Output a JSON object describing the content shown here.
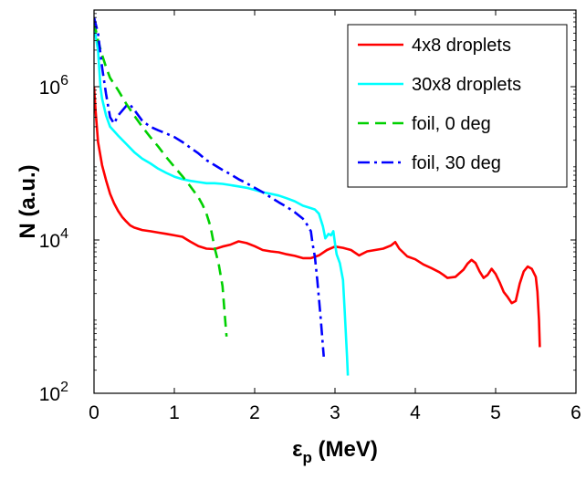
{
  "chart_data": {
    "type": "line",
    "title": "",
    "xlabel": {
      "main": "ε",
      "sub": "p",
      "rest": " (MeV)"
    },
    "ylabel": "N (a.u.)",
    "xlim": [
      0,
      6
    ],
    "ylim": [
      100,
      10000000
    ],
    "yscale": "log",
    "grid": false,
    "legend_position": "top-right",
    "x_ticks": [
      {
        "value": 0,
        "label": "0"
      },
      {
        "value": 1,
        "label": "1"
      },
      {
        "value": 2,
        "label": "2"
      },
      {
        "value": 3,
        "label": "3"
      },
      {
        "value": 4,
        "label": "4"
      },
      {
        "value": 5,
        "label": "5"
      },
      {
        "value": 6,
        "label": "6"
      }
    ],
    "y_ticks": [
      {
        "value": 100,
        "base": "10",
        "exp": "2"
      },
      {
        "value": 10000,
        "base": "10",
        "exp": "4"
      },
      {
        "value": 1000000,
        "base": "10",
        "exp": "6"
      }
    ],
    "series": [
      {
        "name": "4x8 droplets",
        "color": "#ff0000",
        "dash": "solid",
        "points": [
          [
            0.0,
            1000000
          ],
          [
            0.02,
            470000
          ],
          [
            0.05,
            190000
          ],
          [
            0.1,
            95000
          ],
          [
            0.15,
            60000
          ],
          [
            0.2,
            40000
          ],
          [
            0.25,
            30000
          ],
          [
            0.3,
            24000
          ],
          [
            0.35,
            20000
          ],
          [
            0.4,
            17500
          ],
          [
            0.45,
            15500
          ],
          [
            0.5,
            14500
          ],
          [
            0.6,
            13500
          ],
          [
            0.7,
            13000
          ],
          [
            0.8,
            12500
          ],
          [
            0.9,
            12000
          ],
          [
            1.0,
            11500
          ],
          [
            1.1,
            11000
          ],
          [
            1.2,
            9500
          ],
          [
            1.3,
            8300
          ],
          [
            1.4,
            7700
          ],
          [
            1.5,
            7600
          ],
          [
            1.6,
            8200
          ],
          [
            1.7,
            8700
          ],
          [
            1.8,
            9600
          ],
          [
            1.9,
            9100
          ],
          [
            2.0,
            8300
          ],
          [
            2.1,
            7400
          ],
          [
            2.2,
            7100
          ],
          [
            2.3,
            6900
          ],
          [
            2.4,
            6500
          ],
          [
            2.5,
            6200
          ],
          [
            2.6,
            5800
          ],
          [
            2.7,
            5800
          ],
          [
            2.8,
            6300
          ],
          [
            2.9,
            7400
          ],
          [
            3.0,
            8200
          ],
          [
            3.1,
            7900
          ],
          [
            3.2,
            7400
          ],
          [
            3.3,
            6300
          ],
          [
            3.4,
            7100
          ],
          [
            3.5,
            7400
          ],
          [
            3.6,
            7700
          ],
          [
            3.7,
            8500
          ],
          [
            3.75,
            9400
          ],
          [
            3.8,
            7700
          ],
          [
            3.9,
            6100
          ],
          [
            4.0,
            5600
          ],
          [
            4.1,
            4800
          ],
          [
            4.2,
            4300
          ],
          [
            4.3,
            3800
          ],
          [
            4.35,
            3500
          ],
          [
            4.4,
            3200
          ],
          [
            4.5,
            3300
          ],
          [
            4.6,
            4100
          ],
          [
            4.65,
            4900
          ],
          [
            4.7,
            5500
          ],
          [
            4.75,
            5000
          ],
          [
            4.8,
            3900
          ],
          [
            4.85,
            3200
          ],
          [
            4.9,
            3500
          ],
          [
            4.95,
            4200
          ],
          [
            5.0,
            3600
          ],
          [
            5.05,
            2800
          ],
          [
            5.1,
            2100
          ],
          [
            5.15,
            1800
          ],
          [
            5.2,
            1500
          ],
          [
            5.25,
            1600
          ],
          [
            5.3,
            2700
          ],
          [
            5.35,
            3900
          ],
          [
            5.4,
            4500
          ],
          [
            5.45,
            4200
          ],
          [
            5.5,
            3300
          ],
          [
            5.52,
            2100
          ],
          [
            5.54,
            900
          ],
          [
            5.55,
            400
          ]
        ]
      },
      {
        "name": "30x8 droplets",
        "color": "#00ffff",
        "dash": "solid",
        "points": [
          [
            0.0,
            6000000
          ],
          [
            0.05,
            3000000
          ],
          [
            0.08,
            1000000
          ],
          [
            0.1,
            700000
          ],
          [
            0.15,
            420000
          ],
          [
            0.2,
            300000
          ],
          [
            0.3,
            230000
          ],
          [
            0.4,
            180000
          ],
          [
            0.5,
            140000
          ],
          [
            0.6,
            115000
          ],
          [
            0.7,
            100000
          ],
          [
            0.8,
            85000
          ],
          [
            0.9,
            75000
          ],
          [
            1.0,
            67000
          ],
          [
            1.1,
            62000
          ],
          [
            1.2,
            59000
          ],
          [
            1.3,
            57000
          ],
          [
            1.4,
            55000
          ],
          [
            1.5,
            55000
          ],
          [
            1.6,
            54000
          ],
          [
            1.7,
            52000
          ],
          [
            1.8,
            50000
          ],
          [
            1.9,
            48000
          ],
          [
            2.0,
            45000
          ],
          [
            2.1,
            42000
          ],
          [
            2.2,
            40000
          ],
          [
            2.3,
            38000
          ],
          [
            2.4,
            35000
          ],
          [
            2.5,
            32000
          ],
          [
            2.6,
            28000
          ],
          [
            2.7,
            26000
          ],
          [
            2.75,
            25000
          ],
          [
            2.8,
            22000
          ],
          [
            2.85,
            15000
          ],
          [
            2.88,
            10500
          ],
          [
            2.92,
            12000
          ],
          [
            2.95,
            11500
          ],
          [
            2.98,
            13000
          ],
          [
            3.0,
            9000
          ],
          [
            3.02,
            6500
          ],
          [
            3.06,
            5000
          ],
          [
            3.1,
            3000
          ],
          [
            3.12,
            1200
          ],
          [
            3.15,
            300
          ],
          [
            3.16,
            170
          ]
        ]
      },
      {
        "name": "foil, 0 deg",
        "color": "#00d000",
        "dash": "dashed",
        "points": [
          [
            0.0,
            7000000
          ],
          [
            0.05,
            4000000
          ],
          [
            0.1,
            2600000
          ],
          [
            0.15,
            1800000
          ],
          [
            0.2,
            1300000
          ],
          [
            0.3,
            900000
          ],
          [
            0.4,
            600000
          ],
          [
            0.5,
            420000
          ],
          [
            0.6,
            300000
          ],
          [
            0.7,
            220000
          ],
          [
            0.8,
            165000
          ],
          [
            0.9,
            120000
          ],
          [
            1.0,
            90000
          ],
          [
            1.1,
            68000
          ],
          [
            1.2,
            50000
          ],
          [
            1.3,
            36000
          ],
          [
            1.35,
            29000
          ],
          [
            1.4,
            22000
          ],
          [
            1.45,
            15000
          ],
          [
            1.5,
            8000
          ],
          [
            1.55,
            5000
          ],
          [
            1.6,
            2500
          ],
          [
            1.63,
            1000
          ],
          [
            1.65,
            550
          ]
        ]
      },
      {
        "name": "foil, 30 deg",
        "color": "#0000ff",
        "dash": "dashdot",
        "points": [
          [
            0.0,
            8000000
          ],
          [
            0.05,
            5000000
          ],
          [
            0.1,
            1800000
          ],
          [
            0.15,
            800000
          ],
          [
            0.2,
            400000
          ],
          [
            0.25,
            330000
          ],
          [
            0.3,
            420000
          ],
          [
            0.4,
            560000
          ],
          [
            0.45,
            580000
          ],
          [
            0.5,
            500000
          ],
          [
            0.6,
            360000
          ],
          [
            0.7,
            300000
          ],
          [
            0.8,
            270000
          ],
          [
            0.9,
            245000
          ],
          [
            1.0,
            220000
          ],
          [
            1.1,
            190000
          ],
          [
            1.2,
            160000
          ],
          [
            1.3,
            135000
          ],
          [
            1.4,
            110000
          ],
          [
            1.5,
            95000
          ],
          [
            1.6,
            82000
          ],
          [
            1.7,
            72000
          ],
          [
            1.8,
            62000
          ],
          [
            1.9,
            55000
          ],
          [
            2.0,
            48000
          ],
          [
            2.1,
            42000
          ],
          [
            2.2,
            36000
          ],
          [
            2.3,
            31000
          ],
          [
            2.4,
            27000
          ],
          [
            2.5,
            23000
          ],
          [
            2.6,
            19000
          ],
          [
            2.65,
            16000
          ],
          [
            2.7,
            13000
          ],
          [
            2.72,
            9000
          ],
          [
            2.75,
            6000
          ],
          [
            2.78,
            3000
          ],
          [
            2.82,
            1000
          ],
          [
            2.86,
            300
          ]
        ]
      }
    ]
  }
}
